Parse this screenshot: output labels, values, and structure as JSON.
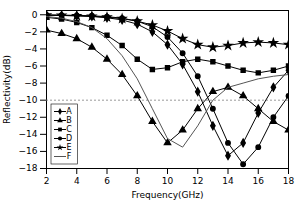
{
  "chart_data": {
    "type": "line",
    "xlabel": "Frequency(GHz)",
    "ylabel": "Reflectivity(dB)",
    "x": [
      2,
      3,
      4,
      5,
      6,
      7,
      8,
      9,
      10,
      11,
      12,
      13,
      14,
      15,
      16,
      17,
      18
    ],
    "series": [
      {
        "name": "A",
        "color": "black",
        "marker": "diamond",
        "values": [
          -0.05,
          -0.08,
          -0.12,
          -0.2,
          -0.35,
          -0.6,
          -1.1,
          -2.0,
          -3.5,
          -5.8,
          -9.0,
          -13.0,
          -16.5,
          -15.0,
          -11.5,
          -8.5,
          -6.5
        ]
      },
      {
        "name": "B",
        "color": "black",
        "marker": "triangle",
        "values": [
          -1.8,
          -2.2,
          -2.8,
          -3.8,
          -5.2,
          -7.0,
          -9.5,
          -12.5,
          -15.0,
          -13.5,
          -11.0,
          -9.0,
          -8.5,
          -9.5,
          -11.0,
          -12.5,
          -13.5
        ]
      },
      {
        "name": "C",
        "color": "black",
        "marker": "square",
        "values": [
          -0.3,
          -0.5,
          -0.9,
          -1.5,
          -2.4,
          -3.6,
          -5.2,
          -6.4,
          -6.2,
          -5.5,
          -5.2,
          -5.5,
          -6.0,
          -6.5,
          -6.8,
          -6.5,
          -6.0
        ]
      },
      {
        "name": "D",
        "color": "black",
        "marker": "circle",
        "values": [
          -0.02,
          -0.04,
          -0.07,
          -0.12,
          -0.22,
          -0.4,
          -0.75,
          -1.4,
          -2.6,
          -4.5,
          -7.2,
          -11.0,
          -15.0,
          -17.5,
          -15.5,
          -12.0,
          -9.5
        ]
      },
      {
        "name": "E",
        "color": "black",
        "marker": "star",
        "values": [
          -0.05,
          -0.08,
          -0.12,
          -0.18,
          -0.28,
          -0.45,
          -0.75,
          -1.2,
          -1.9,
          -2.8,
          -3.5,
          -3.8,
          -3.6,
          -3.3,
          -3.2,
          -3.3,
          -3.5
        ]
      },
      {
        "name": "F",
        "color": "#555555",
        "values": [
          -0.2,
          -0.4,
          -0.8,
          -1.5,
          -2.8,
          -4.8,
          -7.5,
          -11.0,
          -14.5,
          -15.5,
          -13.0,
          -10.0,
          -8.5,
          -8.0,
          -7.5,
          -7.2,
          -7.0
        ]
      }
    ],
    "hline": -10,
    "xlim": [
      2,
      18
    ],
    "ylim": [
      -18,
      0.5
    ],
    "xticks": [
      2,
      4,
      6,
      8,
      10,
      12,
      14,
      16,
      18
    ],
    "yticks": [
      0,
      -2,
      -4,
      -6,
      -8,
      -10,
      -12,
      -14,
      -16,
      -18
    ],
    "legend": "lower left"
  }
}
